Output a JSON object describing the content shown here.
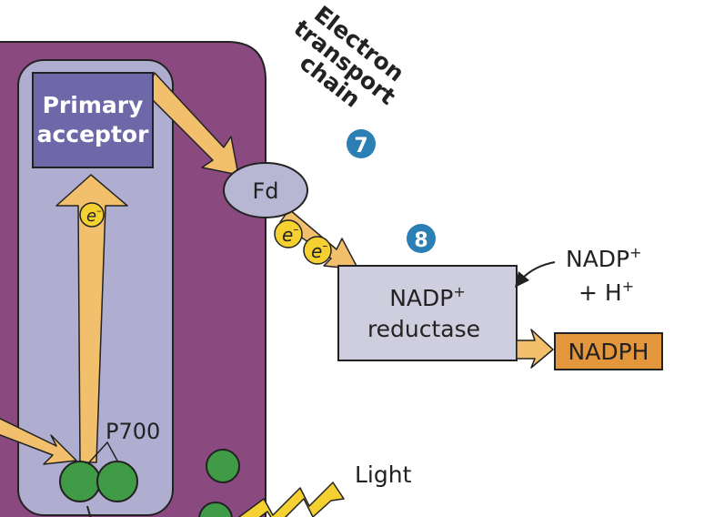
{
  "labels": {
    "etc_line1": "Electron",
    "etc_line2": "transport",
    "etc_line3": "chain",
    "step7": "7",
    "step8": "8",
    "primary_line1": "Primary",
    "primary_line2": "acceptor",
    "fd": "Fd",
    "electron": "e",
    "electron_sup": "–",
    "nadp_reductase_line1": "NADP",
    "nadp_reductase_sup": "+",
    "nadp_reductase_line2": "reductase",
    "nadp_in_line1": "NADP",
    "nadp_in_sup1": "+",
    "nadp_in_line2": "+ H",
    "nadp_in_sup2": "+",
    "nadph": "NADPH",
    "p700": "P700",
    "light": "Light"
  },
  "colors": {
    "thylakoid_membrane": "#8a4a80",
    "photosystem": "#b0aed0",
    "primary_acceptor": "#6f68a8",
    "fd": "#b8b7d3",
    "reductase": "#cfcedf",
    "arrow": "#f2c06d",
    "electron": "#f5d031",
    "chlorophyll": "#3f9b45",
    "nadph": "#e3963b",
    "step_badge": "#2b7fb4"
  }
}
